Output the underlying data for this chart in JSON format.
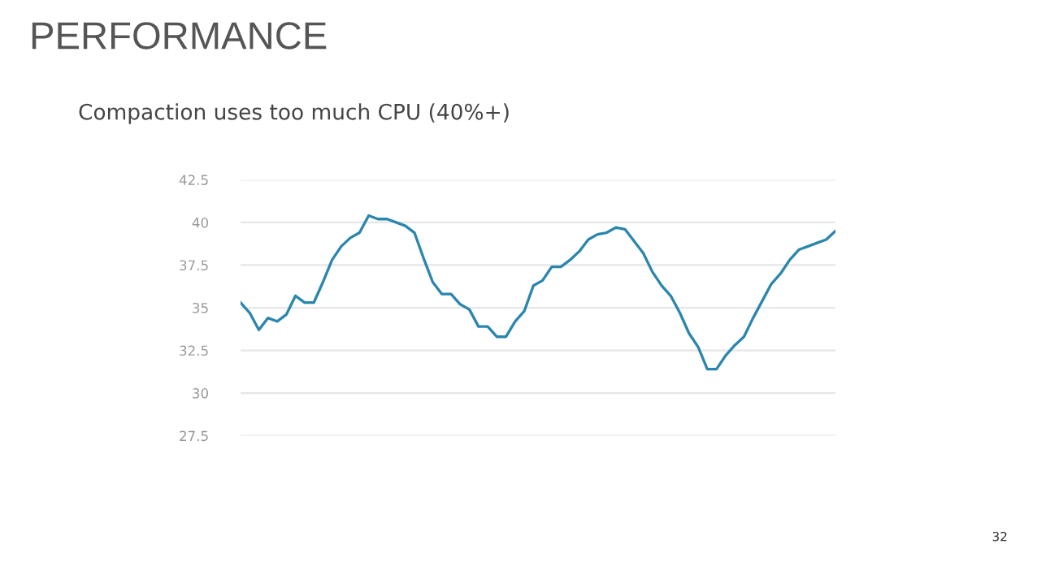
{
  "chart_data": {
    "type": "line",
    "title": "PERFORMANCE",
    "subtitle": "Compaction uses too much CPU (40%+)",
    "annotations": [
      "32"
    ],
    "categories": [
      null,
      null,
      null,
      null,
      null,
      null,
      null,
      null,
      null,
      null,
      null,
      null,
      null,
      null,
      null,
      null,
      null,
      null,
      null,
      null,
      null,
      null,
      null,
      null,
      null,
      null,
      null,
      null,
      null,
      null,
      null,
      null,
      null,
      null,
      null,
      null,
      null,
      null,
      null,
      null,
      null,
      null,
      null,
      null,
      null,
      null,
      null,
      null,
      null,
      null,
      null,
      null,
      null,
      null,
      null,
      null,
      null,
      null,
      null,
      null,
      null,
      null,
      null,
      null,
      null,
      null
    ],
    "series": [
      {
        "color": "#2b86ad",
        "values": [
          35.3,
          34.7,
          33.7,
          34.4,
          34.2,
          34.6,
          35.7,
          35.3,
          35.3,
          36.5,
          37.8,
          38.6,
          39.1,
          39.4,
          40.4,
          40.2,
          40.2,
          40.0,
          39.8,
          39.4,
          37.9,
          36.5,
          35.8,
          35.8,
          35.2,
          34.9,
          33.9,
          33.9,
          33.3,
          33.3,
          34.2,
          34.8,
          36.3,
          36.6,
          37.4,
          37.4,
          37.8,
          38.3,
          39.0,
          39.3,
          39.4,
          39.7,
          39.6,
          38.9,
          38.2,
          37.1,
          36.3,
          35.7,
          34.7,
          33.5,
          32.7,
          31.4,
          31.4,
          32.2,
          32.8,
          33.3,
          34.4,
          35.4,
          36.4,
          37.0,
          37.8,
          38.4,
          38.6,
          38.8,
          39.0,
          39.5
        ]
      }
    ],
    "ylim": [
      27.5,
      42.5
    ],
    "yticks": [
      27.5,
      30,
      32.5,
      35,
      37.5,
      40,
      42.5
    ],
    "grid": "y",
    "tick_labels": "y",
    "marker": "none",
    "line_style": "solid",
    "legend": false
  }
}
